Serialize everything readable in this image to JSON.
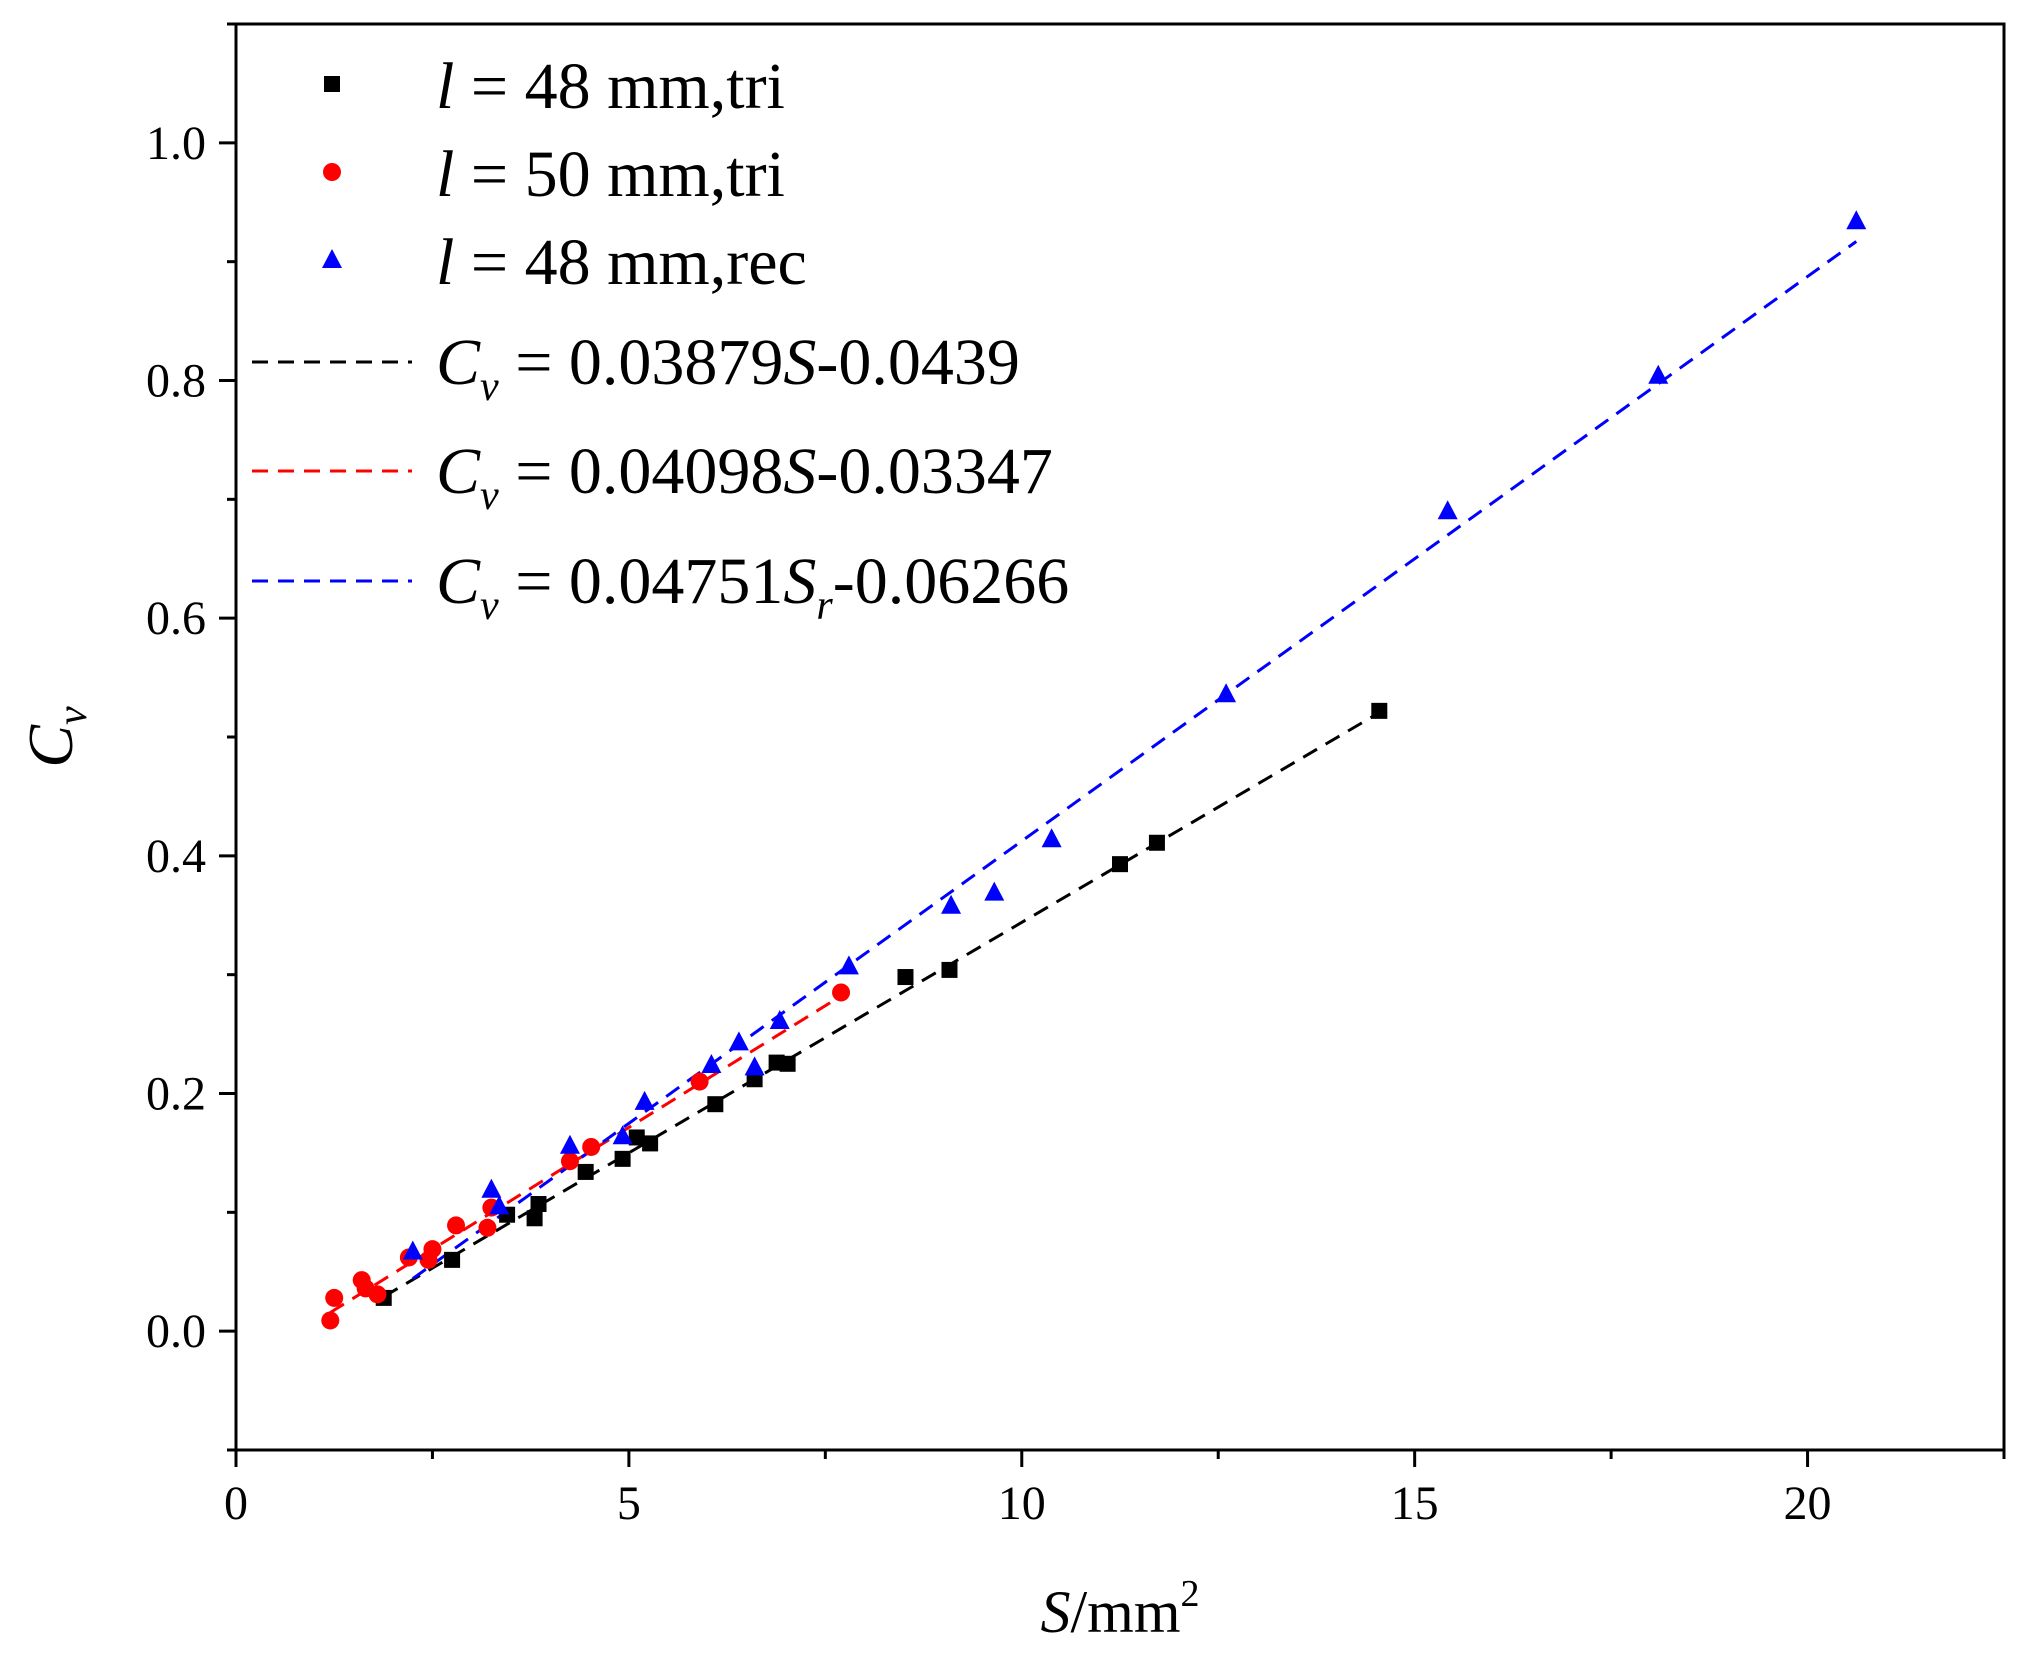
{
  "chart_data": {
    "type": "scatter",
    "title": "",
    "xlabel": {
      "var": "S",
      "unit": "/mm",
      "sup": "2"
    },
    "ylabel": {
      "var": "C",
      "sub": "v"
    },
    "xlim": [
      0,
      22.5
    ],
    "ylim": [
      -0.1,
      1.1
    ],
    "grid": false,
    "x_ticks": [
      {
        "value": 0,
        "label": "0"
      },
      {
        "value": 5,
        "label": "5"
      },
      {
        "value": 10,
        "label": "10"
      },
      {
        "value": 15,
        "label": "15"
      },
      {
        "value": 20,
        "label": "20"
      }
    ],
    "x_minor_ticks": [
      2.5,
      7.5,
      12.5,
      17.5,
      22.5
    ],
    "y_ticks": [
      {
        "value": 0.0,
        "label": "0.0"
      },
      {
        "value": 0.2,
        "label": "0.2"
      },
      {
        "value": 0.4,
        "label": "0.4"
      },
      {
        "value": 0.6,
        "label": "0.6"
      },
      {
        "value": 0.8,
        "label": "0.8"
      },
      {
        "value": 1.0,
        "label": "1.0"
      }
    ],
    "y_minor_ticks": [
      -0.1,
      0.1,
      0.3,
      0.5,
      0.7,
      0.9,
      1.1
    ],
    "legend_position": "top-left",
    "series": [
      {
        "name": "l = 48 mm,tri",
        "legend": {
          "pre": "l",
          "text": " = 48 mm,tri"
        },
        "marker": "square",
        "color": "#000000",
        "points": [
          [
            1.88,
            0.028
          ],
          [
            2.75,
            0.06
          ],
          [
            3.45,
            0.098
          ],
          [
            3.8,
            0.095
          ],
          [
            3.85,
            0.107
          ],
          [
            4.45,
            0.134
          ],
          [
            4.92,
            0.145
          ],
          [
            5.1,
            0.163
          ],
          [
            5.27,
            0.158
          ],
          [
            6.1,
            0.191
          ],
          [
            6.6,
            0.212
          ],
          [
            6.88,
            0.226
          ],
          [
            7.02,
            0.225
          ],
          [
            8.52,
            0.298
          ],
          [
            9.08,
            0.304
          ],
          [
            11.25,
            0.393
          ],
          [
            11.72,
            0.411
          ],
          [
            14.55,
            0.522
          ]
        ]
      },
      {
        "name": "l = 50 mm,tri",
        "legend": {
          "pre": "l",
          "text": " = 50 mm,tri"
        },
        "marker": "circle",
        "color": "#ff0000",
        "points": [
          [
            1.2,
            0.009
          ],
          [
            1.25,
            0.028
          ],
          [
            1.6,
            0.043
          ],
          [
            1.65,
            0.036
          ],
          [
            1.8,
            0.031
          ],
          [
            2.2,
            0.062
          ],
          [
            2.45,
            0.06
          ],
          [
            2.5,
            0.069
          ],
          [
            2.8,
            0.089
          ],
          [
            3.2,
            0.087
          ],
          [
            3.25,
            0.104
          ],
          [
            4.25,
            0.143
          ],
          [
            4.52,
            0.155
          ],
          [
            5.9,
            0.21
          ],
          [
            7.7,
            0.285
          ]
        ]
      },
      {
        "name": "l = 48 mm,rec",
        "legend": {
          "pre": "l",
          "text": " = 48 mm,rec"
        },
        "marker": "triangle",
        "color": "#0000ff",
        "points": [
          [
            2.25,
            0.067
          ],
          [
            3.25,
            0.119
          ],
          [
            3.35,
            0.105
          ],
          [
            4.25,
            0.156
          ],
          [
            4.92,
            0.164
          ],
          [
            5.2,
            0.193
          ],
          [
            6.05,
            0.224
          ],
          [
            6.4,
            0.243
          ],
          [
            6.6,
            0.222
          ],
          [
            6.92,
            0.261
          ],
          [
            7.8,
            0.307
          ],
          [
            9.1,
            0.358
          ],
          [
            9.65,
            0.369
          ],
          [
            10.38,
            0.414
          ],
          [
            12.6,
            0.536
          ],
          [
            15.42,
            0.69
          ],
          [
            18.1,
            0.804
          ],
          [
            20.62,
            0.934
          ]
        ]
      }
    ],
    "fits": [
      {
        "color": "#000000",
        "slope": 0.03879,
        "intercept": -0.0439,
        "x_range": [
          1.88,
          14.55
        ],
        "legend": {
          "var": "C",
          "sub": "v",
          "mid": " = 0.03879",
          "var2": "S",
          "sub2": "",
          "tail": "-0.0439"
        }
      },
      {
        "color": "#ff0000",
        "slope": 0.04098,
        "intercept": -0.03347,
        "x_range": [
          1.2,
          7.7
        ],
        "legend": {
          "var": "C",
          "sub": "v",
          "mid": " = 0.04098",
          "var2": "S",
          "sub2": "",
          "tail": "-0.03347"
        }
      },
      {
        "color": "#0000ff",
        "slope": 0.04751,
        "intercept": -0.06266,
        "x_range": [
          2.25,
          20.62
        ],
        "legend": {
          "var": "C",
          "sub": "v",
          "mid": " = 0.04751",
          "var2": "S",
          "sub2": "r",
          "tail": "-0.06266"
        }
      }
    ]
  }
}
